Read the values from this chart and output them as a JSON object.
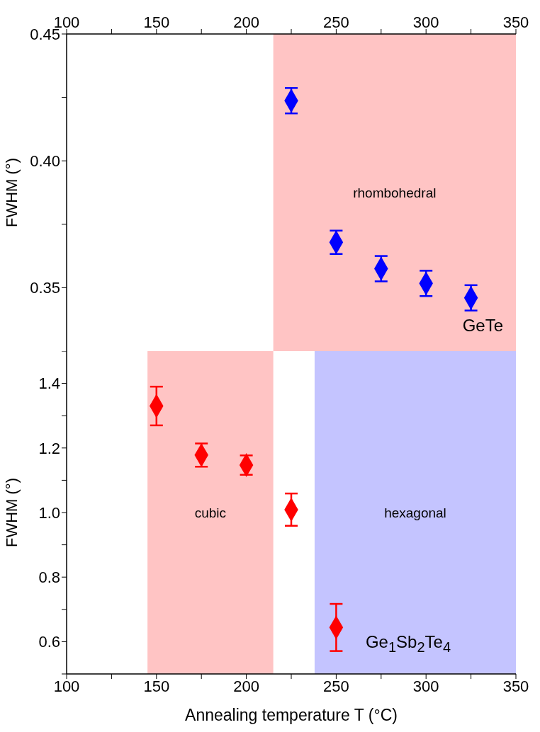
{
  "chart_data": [
    {
      "type": "scatter",
      "ylabel": "FWHM (°)",
      "marker": "diamond",
      "xlim": [
        100,
        350
      ],
      "xticks": [
        100,
        {
          "value": 125,
          "label": null
        },
        150,
        {
          "value": 175,
          "label": null
        },
        200,
        {
          "value": 225,
          "label": null
        },
        250,
        {
          "value": 275,
          "label": null
        },
        300,
        {
          "value": 325,
          "label": null
        },
        350
      ],
      "ylim": [
        0.325,
        0.45
      ],
      "yticks": [
        {
          "value": 0.35,
          "label": "0.35"
        },
        {
          "value": 0.375,
          "label": null
        },
        {
          "value": 0.4,
          "label": "0.40"
        },
        {
          "value": 0.425,
          "label": null
        },
        {
          "value": 0.45,
          "label": "0.45"
        }
      ],
      "x": [
        225,
        250,
        275,
        300,
        325
      ],
      "series": [
        {
          "name": "GeTe",
          "color": "#0000ff",
          "values": [
            0.4237,
            0.3679,
            0.3575,
            0.3517,
            0.346
          ],
          "errors": [
            0.005,
            0.0046,
            0.005,
            0.005,
            0.005
          ]
        }
      ],
      "bands": [
        {
          "axis": "x",
          "from": 215,
          "to": 350,
          "label": "rhombohedral",
          "color": "#ffc4c4"
        }
      ]
    },
    {
      "type": "scatter",
      "xlabel": "Annealing temperature T (°C)",
      "ylabel": "FWHM (°)",
      "marker": "diamond",
      "xlim": [
        100,
        350
      ],
      "xticks": [
        100,
        {
          "value": 125,
          "label": null
        },
        150,
        {
          "value": 175,
          "label": null
        },
        200,
        {
          "value": 225,
          "label": null
        },
        250,
        {
          "value": 275,
          "label": null
        },
        300,
        {
          "value": 325,
          "label": null
        },
        350
      ],
      "ylim": [
        0.5,
        1.5
      ],
      "yticks": [
        {
          "value": 0.5,
          "label": null
        },
        0.6,
        {
          "value": 0.7,
          "label": null
        },
        0.8,
        {
          "value": 0.9,
          "label": null
        },
        {
          "value": 1,
          "label": "1.0"
        },
        {
          "value": 1.1,
          "label": null
        },
        1.2,
        {
          "value": 1.3,
          "label": null
        },
        1.4,
        {
          "value": 1.5,
          "label": null
        }
      ],
      "x": [
        150,
        175,
        200,
        225,
        250
      ],
      "series": [
        {
          "name": "Ge$_{1}$Sb$_{2}$Te$_{4}$",
          "color": "#ff0000",
          "values": [
            1.33,
            1.178,
            1.147,
            1.009,
            0.644
          ],
          "errors": [
            0.06,
            0.036,
            0.03,
            0.05,
            0.073
          ]
        }
      ],
      "bands": [
        {
          "axis": "x",
          "from": 145,
          "to": 215,
          "label": "cubic",
          "color": "#ffc4c4"
        },
        {
          "axis": "x",
          "from": 238,
          "to": 350,
          "label": "hexagonal",
          "color": "#c4c4ff"
        }
      ]
    }
  ]
}
